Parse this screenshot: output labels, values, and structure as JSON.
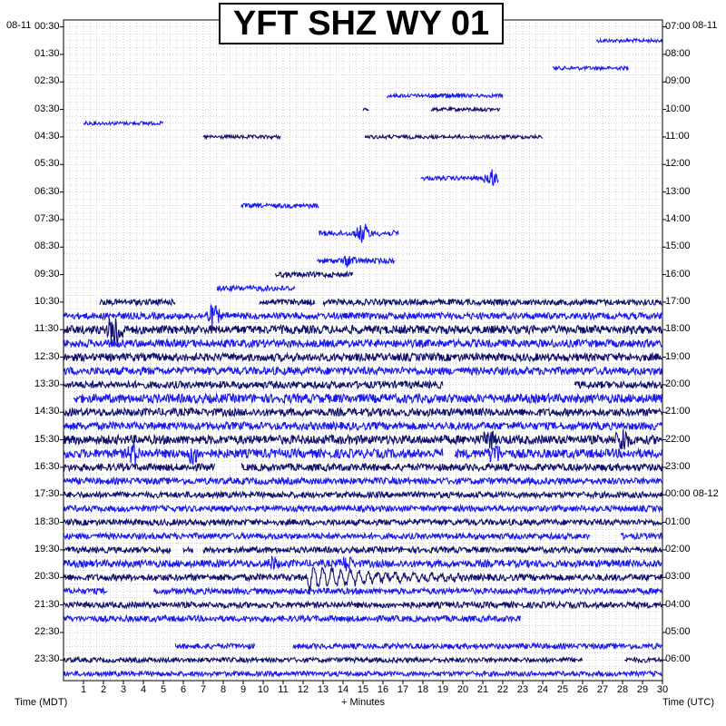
{
  "title": "YFT SHZ WY 01",
  "date_left": "08-11",
  "date_right": "08-11",
  "footer": {
    "left_label": "Time (MDT)",
    "center_label": "+ Minutes",
    "right_label": "Time (UTC)"
  },
  "colors": {
    "navy": "#10106e",
    "blue": "#1a1aee",
    "grid": "#b4b4b4",
    "frame": "#000000",
    "background": "#ffffff"
  },
  "chart_data": {
    "type": "heatmap",
    "title": "YFT SHZ WY 01",
    "xlabel": "+ Minutes",
    "ylabel_left": "Time (MDT)",
    "ylabel_right": "Time (UTC)",
    "xlim": [
      0,
      30
    ],
    "x_ticks": [
      1,
      2,
      3,
      4,
      5,
      6,
      7,
      8,
      9,
      10,
      11,
      12,
      13,
      14,
      15,
      16,
      17,
      18,
      19,
      20,
      21,
      22,
      23,
      24,
      25,
      26,
      27,
      28,
      29,
      30
    ],
    "left_time_labels": [
      "00:30",
      "01:30",
      "02:30",
      "03:30",
      "04:30",
      "05:30",
      "06:30",
      "07:30",
      "08:30",
      "09:30",
      "10:30",
      "11:30",
      "12:30",
      "13:30",
      "14:30",
      "15:30",
      "16:30",
      "17:30",
      "18:30",
      "19:30",
      "20:30",
      "21:30",
      "22:30",
      "23:30"
    ],
    "right_time_labels": [
      "07:00",
      "08:00",
      "09:00",
      "10:00",
      "11:00",
      "12:00",
      "13:00",
      "14:00",
      "15:00",
      "16:00",
      "17:00",
      "18:00",
      "19:00",
      "20:00",
      "21:00",
      "22:00",
      "23:00",
      "00:00 08-12",
      "01:00",
      "02:00",
      "03:00",
      "04:00",
      "05:00",
      "06:00"
    ],
    "rows_per_hour": 2,
    "trace_colors_cycle": [
      "navy",
      "blue"
    ],
    "grid": true,
    "traces": [
      {
        "row": 1,
        "segments": [
          [
            26.7,
            30.0
          ]
        ],
        "amp": 0.12
      },
      {
        "row": 3,
        "segments": [
          [
            24.5,
            28.3
          ]
        ],
        "amp": 0.12
      },
      {
        "row": 5,
        "segments": [
          [
            16.2,
            20.0
          ],
          [
            18.4,
            22.0
          ]
        ],
        "amp": 0.12
      },
      {
        "row": 6,
        "segments": [
          [
            15.0,
            15.3
          ],
          [
            18.4,
            21.9
          ]
        ],
        "amp": 0.12
      },
      {
        "row": 7,
        "segments": [
          [
            1.0,
            5.0
          ]
        ],
        "amp": 0.12
      },
      {
        "row": 8,
        "segments": [
          [
            7.0,
            10.9
          ],
          [
            15.1,
            24.0
          ]
        ],
        "amp": 0.12
      },
      {
        "row": 11,
        "segments": [
          [
            17.9,
            21.8
          ]
        ],
        "amp": 0.14,
        "events": [
          [
            21.4,
            0.7
          ]
        ]
      },
      {
        "row": 13,
        "segments": [
          [
            8.9,
            12.8
          ]
        ],
        "amp": 0.15
      },
      {
        "row": 15,
        "segments": [
          [
            12.8,
            16.8
          ]
        ],
        "amp": 0.18,
        "events": [
          [
            15.0,
            0.8
          ]
        ]
      },
      {
        "row": 17,
        "segments": [
          [
            12.7,
            16.6
          ]
        ],
        "amp": 0.18,
        "events": [
          [
            14.3,
            0.5
          ]
        ]
      },
      {
        "row": 18,
        "segments": [
          [
            10.6,
            14.5
          ]
        ],
        "amp": 0.18
      },
      {
        "row": 19,
        "segments": [
          [
            7.7,
            11.6
          ]
        ],
        "amp": 0.18
      },
      {
        "row": 20,
        "segments": [
          [
            1.8,
            5.6
          ],
          [
            9.8,
            12.6
          ],
          [
            13.0,
            30.0
          ]
        ],
        "amp": 0.2
      },
      {
        "row": 21,
        "segments": [
          [
            0.0,
            30.0
          ]
        ],
        "amp": 0.22,
        "events": [
          [
            7.5,
            0.9
          ]
        ]
      },
      {
        "row": 22,
        "segments": [
          [
            0.0,
            30.0
          ]
        ],
        "amp": 0.28,
        "events": [
          [
            2.6,
            1.7
          ]
        ]
      },
      {
        "row": 23,
        "segments": [
          [
            0.0,
            30.0
          ]
        ],
        "amp": 0.26
      },
      {
        "row": 24,
        "segments": [
          [
            0.0,
            30.0
          ]
        ],
        "amp": 0.26
      },
      {
        "row": 25,
        "segments": [
          [
            0.0,
            30.0
          ]
        ],
        "amp": 0.26
      },
      {
        "row": 26,
        "segments": [
          [
            0.0,
            19.0
          ],
          [
            25.6,
            30.0
          ]
        ],
        "amp": 0.24
      },
      {
        "row": 27,
        "segments": [
          [
            0.5,
            30.0
          ]
        ],
        "amp": 0.3
      },
      {
        "row": 28,
        "segments": [
          [
            0.0,
            30.0
          ]
        ],
        "amp": 0.26
      },
      {
        "row": 29,
        "segments": [
          [
            0.0,
            30.0
          ]
        ],
        "amp": 0.26
      },
      {
        "row": 30,
        "segments": [
          [
            0.0,
            30.0
          ]
        ],
        "amp": 0.3,
        "events": [
          [
            21.3,
            0.9
          ],
          [
            28.0,
            1.1
          ]
        ]
      },
      {
        "row": 31,
        "segments": [
          [
            0.0,
            19.0
          ],
          [
            19.6,
            30.0
          ]
        ],
        "amp": 0.3,
        "events": [
          [
            3.5,
            0.9
          ],
          [
            6.5,
            0.9
          ],
          [
            21.6,
            0.9
          ]
        ]
      },
      {
        "row": 32,
        "segments": [
          [
            0.0,
            7.6
          ],
          [
            8.9,
            30.0
          ]
        ],
        "amp": 0.24
      },
      {
        "row": 33,
        "segments": [
          [
            0.0,
            30.0
          ]
        ],
        "amp": 0.22
      },
      {
        "row": 34,
        "segments": [
          [
            0.0,
            30.0
          ]
        ],
        "amp": 0.2
      },
      {
        "row": 35,
        "segments": [
          [
            0.0,
            30.0
          ]
        ],
        "amp": 0.2
      },
      {
        "row": 36,
        "segments": [
          [
            0.0,
            30.0
          ]
        ],
        "amp": 0.2
      },
      {
        "row": 37,
        "segments": [
          [
            0.0,
            26.4
          ],
          [
            27.9,
            30.0
          ]
        ],
        "amp": 0.2
      },
      {
        "row": 38,
        "segments": [
          [
            0.0,
            5.4
          ],
          [
            6.0,
            6.5
          ],
          [
            7.0,
            30.0
          ]
        ],
        "amp": 0.2
      },
      {
        "row": 39,
        "segments": [
          [
            0.0,
            30.0
          ]
        ],
        "amp": 0.24,
        "events": [
          [
            10.5,
            0.6
          ],
          [
            14.2,
            0.7
          ]
        ]
      },
      {
        "row": 40,
        "segments": [
          [
            0.0,
            30.0
          ]
        ],
        "amp": 0.22,
        "oscillation": [
          12.2,
          20.0,
          1.6
        ]
      },
      {
        "row": 41,
        "segments": [
          [
            0.0,
            2.2
          ],
          [
            4.5,
            30.0
          ]
        ],
        "amp": 0.2
      },
      {
        "row": 42,
        "segments": [
          [
            0.0,
            30.0
          ]
        ],
        "amp": 0.2
      },
      {
        "row": 43,
        "segments": [
          [
            0.0,
            22.9
          ]
        ],
        "amp": 0.2
      },
      {
        "row": 45,
        "segments": [
          [
            5.6,
            9.6
          ],
          [
            11.5,
            30.0
          ]
        ],
        "amp": 0.18
      },
      {
        "row": 46,
        "segments": [
          [
            0.0,
            26.0
          ],
          [
            28.1,
            30.0
          ]
        ],
        "amp": 0.16
      },
      {
        "row": 47,
        "segments": [
          [
            0.0,
            30.0
          ]
        ],
        "amp": 0.16
      }
    ]
  }
}
